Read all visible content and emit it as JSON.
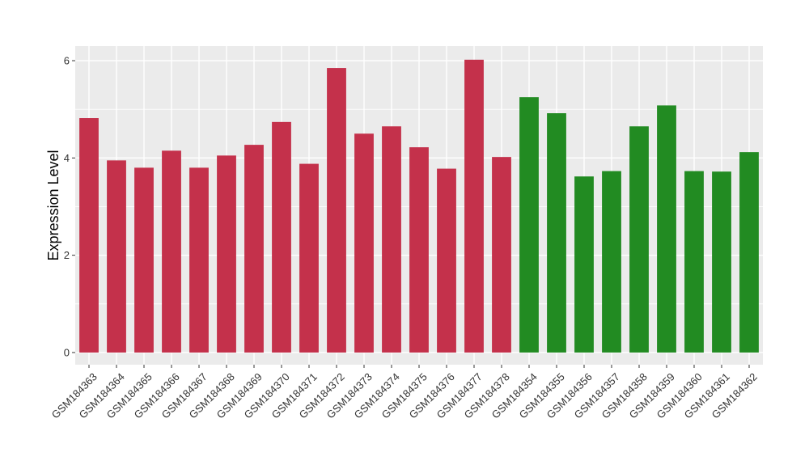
{
  "chart_data": {
    "type": "bar",
    "title": "",
    "xlabel": "",
    "ylabel": "Expression Level",
    "ylim": [
      -0.25,
      6.3
    ],
    "yticks": [
      0,
      2,
      4,
      6
    ],
    "grid": true,
    "categories": [
      "GSM184363",
      "GSM184364",
      "GSM184365",
      "GSM184366",
      "GSM184367",
      "GSM184368",
      "GSM184369",
      "GSM184370",
      "GSM184371",
      "GSM184372",
      "GSM184373",
      "GSM184374",
      "GSM184375",
      "GSM184376",
      "GSM184377",
      "GSM184378",
      "GSM184354",
      "GSM184355",
      "GSM184356",
      "GSM184357",
      "GSM184358",
      "GSM184359",
      "GSM184360",
      "GSM184361",
      "GSM184362"
    ],
    "values": [
      4.82,
      3.95,
      3.8,
      4.15,
      3.8,
      4.05,
      4.27,
      4.74,
      3.88,
      5.85,
      4.5,
      4.65,
      4.22,
      3.78,
      6.02,
      4.02,
      5.25,
      4.92,
      3.62,
      3.73,
      4.65,
      5.08,
      3.73,
      3.72,
      4.12
    ],
    "bar_colors": [
      "#c4314b",
      "#c4314b",
      "#c4314b",
      "#c4314b",
      "#c4314b",
      "#c4314b",
      "#c4314b",
      "#c4314b",
      "#c4314b",
      "#c4314b",
      "#c4314b",
      "#c4314b",
      "#c4314b",
      "#c4314b",
      "#c4314b",
      "#c4314b",
      "#228b22",
      "#228b22",
      "#228b22",
      "#228b22",
      "#228b22",
      "#228b22",
      "#228b22",
      "#228b22",
      "#228b22"
    ],
    "panel_color": "#ebebeb",
    "grid_color": "#ffffff"
  }
}
